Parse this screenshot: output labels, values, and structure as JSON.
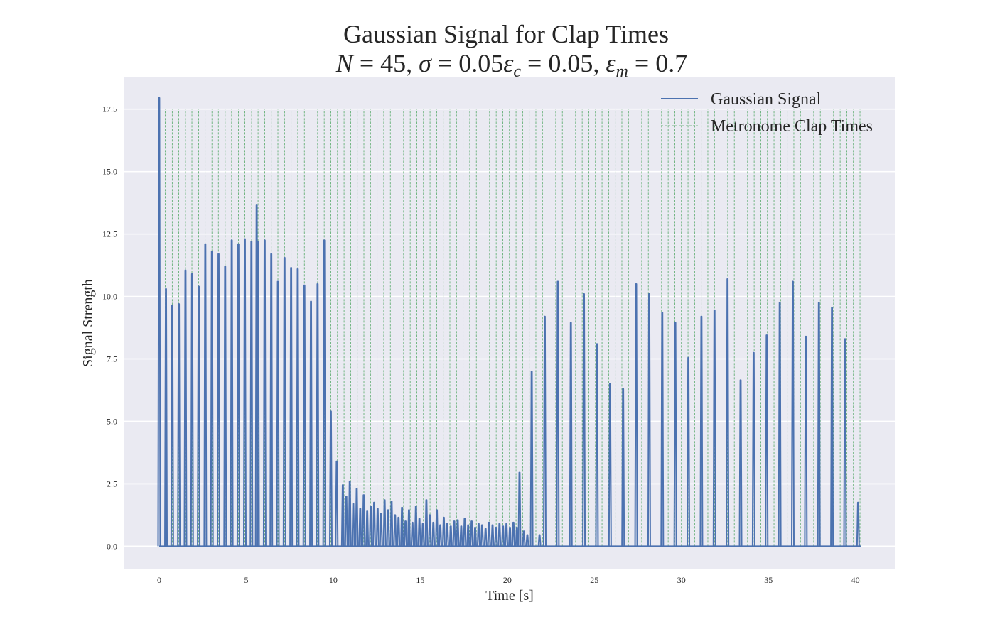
{
  "chart_data": {
    "type": "line",
    "title": "Gaussian Signal for Clap Times",
    "subtitle_parts": [
      "N",
      " = 45, ",
      "σ",
      " = 0.05",
      "ε",
      "c",
      " = 0.05, ",
      "ε",
      "m",
      " = 0.7"
    ],
    "xlabel": "Time [s]",
    "ylabel": "Signal Strength",
    "xlim": [
      -2,
      42.3
    ],
    "ylim": [
      -0.9,
      18.8
    ],
    "xticks": [
      0,
      5,
      10,
      15,
      20,
      25,
      30,
      35,
      40
    ],
    "xtick_labels": [
      "0",
      "5",
      "10",
      "15",
      "20",
      "25",
      "30",
      "35",
      "40"
    ],
    "yticks": [
      0,
      2.5,
      5,
      7.5,
      10,
      12.5,
      15,
      17.5
    ],
    "ytick_labels": [
      "0.0",
      "2.5",
      "5.0",
      "7.5",
      "10.0",
      "12.5",
      "15.0",
      "17.5"
    ],
    "grid": true,
    "legend_position": "top-right",
    "series": [
      {
        "name": "Gaussian Signal",
        "color": "#4c72b0",
        "style": "solid",
        "peaks": [
          [
            0.0,
            17.95
          ],
          [
            0.39,
            10.3
          ],
          [
            0.75,
            9.65
          ],
          [
            1.13,
            9.7
          ],
          [
            1.51,
            11.05
          ],
          [
            1.89,
            10.9
          ],
          [
            2.27,
            10.4
          ],
          [
            2.65,
            12.1
          ],
          [
            3.03,
            11.8
          ],
          [
            3.41,
            11.7
          ],
          [
            3.79,
            11.2
          ],
          [
            4.17,
            12.25
          ],
          [
            4.55,
            12.1
          ],
          [
            4.92,
            12.3
          ],
          [
            5.3,
            12.2
          ],
          [
            5.6,
            13.65
          ],
          [
            5.68,
            12.2
          ],
          [
            6.06,
            12.25
          ],
          [
            6.44,
            11.7
          ],
          [
            6.82,
            10.6
          ],
          [
            7.2,
            11.55
          ],
          [
            7.58,
            11.15
          ],
          [
            7.96,
            11.1
          ],
          [
            8.34,
            10.45
          ],
          [
            8.72,
            9.8
          ],
          [
            9.1,
            10.5
          ],
          [
            9.48,
            12.25
          ],
          [
            9.86,
            5.4
          ],
          [
            10.2,
            3.4
          ],
          [
            10.55,
            2.45
          ],
          [
            10.75,
            2.0
          ],
          [
            10.95,
            2.6
          ],
          [
            11.15,
            1.7
          ],
          [
            11.35,
            2.3
          ],
          [
            11.55,
            1.5
          ],
          [
            11.75,
            2.05
          ],
          [
            11.95,
            1.4
          ],
          [
            12.15,
            1.6
          ],
          [
            12.35,
            1.75
          ],
          [
            12.55,
            1.5
          ],
          [
            12.75,
            1.3
          ],
          [
            12.95,
            1.85
          ],
          [
            13.15,
            1.45
          ],
          [
            13.35,
            1.8
          ],
          [
            13.55,
            1.25
          ],
          [
            13.75,
            1.15
          ],
          [
            13.95,
            1.55
          ],
          [
            14.15,
            1.0
          ],
          [
            14.35,
            1.45
          ],
          [
            14.55,
            0.95
          ],
          [
            14.75,
            1.6
          ],
          [
            14.95,
            1.1
          ],
          [
            15.15,
            0.9
          ],
          [
            15.35,
            1.85
          ],
          [
            15.55,
            1.25
          ],
          [
            15.75,
            0.95
          ],
          [
            15.95,
            1.45
          ],
          [
            16.15,
            0.85
          ],
          [
            16.35,
            1.15
          ],
          [
            16.55,
            0.9
          ],
          [
            16.75,
            0.8
          ],
          [
            16.95,
            1.0
          ],
          [
            17.15,
            1.05
          ],
          [
            17.35,
            0.8
          ],
          [
            17.55,
            1.1
          ],
          [
            17.75,
            0.85
          ],
          [
            17.95,
            1.0
          ],
          [
            18.15,
            0.75
          ],
          [
            18.35,
            0.9
          ],
          [
            18.55,
            0.85
          ],
          [
            18.75,
            0.7
          ],
          [
            18.95,
            0.95
          ],
          [
            19.15,
            0.85
          ],
          [
            19.35,
            0.75
          ],
          [
            19.55,
            0.9
          ],
          [
            19.75,
            0.8
          ],
          [
            19.95,
            0.9
          ],
          [
            20.15,
            0.75
          ],
          [
            20.35,
            0.95
          ],
          [
            20.55,
            0.75
          ],
          [
            20.7,
            2.95
          ],
          [
            20.95,
            0.6
          ],
          [
            21.15,
            0.45
          ],
          [
            21.4,
            7.0
          ],
          [
            21.85,
            0.45
          ],
          [
            22.15,
            9.2
          ],
          [
            22.9,
            10.6
          ],
          [
            23.65,
            8.95
          ],
          [
            24.4,
            10.1
          ],
          [
            25.15,
            8.1
          ],
          [
            25.9,
            6.5
          ],
          [
            26.65,
            6.3
          ],
          [
            27.4,
            10.5
          ],
          [
            28.15,
            10.1
          ],
          [
            28.9,
            9.35
          ],
          [
            29.65,
            8.95
          ],
          [
            30.4,
            7.55
          ],
          [
            31.15,
            9.2
          ],
          [
            31.9,
            9.45
          ],
          [
            32.65,
            10.7
          ],
          [
            33.4,
            6.65
          ],
          [
            34.15,
            7.75
          ],
          [
            34.9,
            8.45
          ],
          [
            35.65,
            9.75
          ],
          [
            36.4,
            10.6
          ],
          [
            37.15,
            8.4
          ],
          [
            37.9,
            9.75
          ],
          [
            38.65,
            9.55
          ],
          [
            39.4,
            8.3
          ],
          [
            40.15,
            1.75
          ]
        ]
      },
      {
        "name": "Metronome Clap Times",
        "color": "#55a868",
        "style": "dashed",
        "top": 17.5,
        "x": [
          0.35,
          0.75,
          1.12,
          1.51,
          1.88,
          2.27,
          2.64,
          3.03,
          3.4,
          3.79,
          4.16,
          4.55,
          4.92,
          5.31,
          5.68,
          6.06,
          6.44,
          6.82,
          7.2,
          7.58,
          7.96,
          8.34,
          8.72,
          9.1,
          9.48,
          9.86,
          10.24,
          10.62,
          11.0,
          11.38,
          11.76,
          12.14,
          12.52,
          12.9,
          13.28,
          13.66,
          14.04,
          14.42,
          14.8,
          15.18,
          15.56,
          15.94,
          16.32,
          16.7,
          17.08,
          17.46,
          17.84,
          18.22,
          18.6,
          18.98,
          19.36,
          19.74,
          20.12,
          20.5,
          20.88,
          21.26,
          21.64,
          22.02,
          22.4,
          22.78,
          23.16,
          23.54,
          23.92,
          24.3,
          24.68,
          25.06,
          25.44,
          25.82,
          26.2,
          26.58,
          26.96,
          27.34,
          27.72,
          28.1,
          28.48,
          28.86,
          29.24,
          29.62,
          30.0,
          30.38,
          30.76,
          31.14,
          31.52,
          31.9,
          32.28,
          32.66,
          33.04,
          33.42,
          33.8,
          34.18,
          34.56,
          34.94,
          35.32,
          35.7,
          36.08,
          36.46,
          36.84,
          37.22,
          37.6,
          37.98,
          38.36,
          38.74,
          39.12,
          39.5,
          39.88,
          40.26
        ]
      }
    ]
  }
}
